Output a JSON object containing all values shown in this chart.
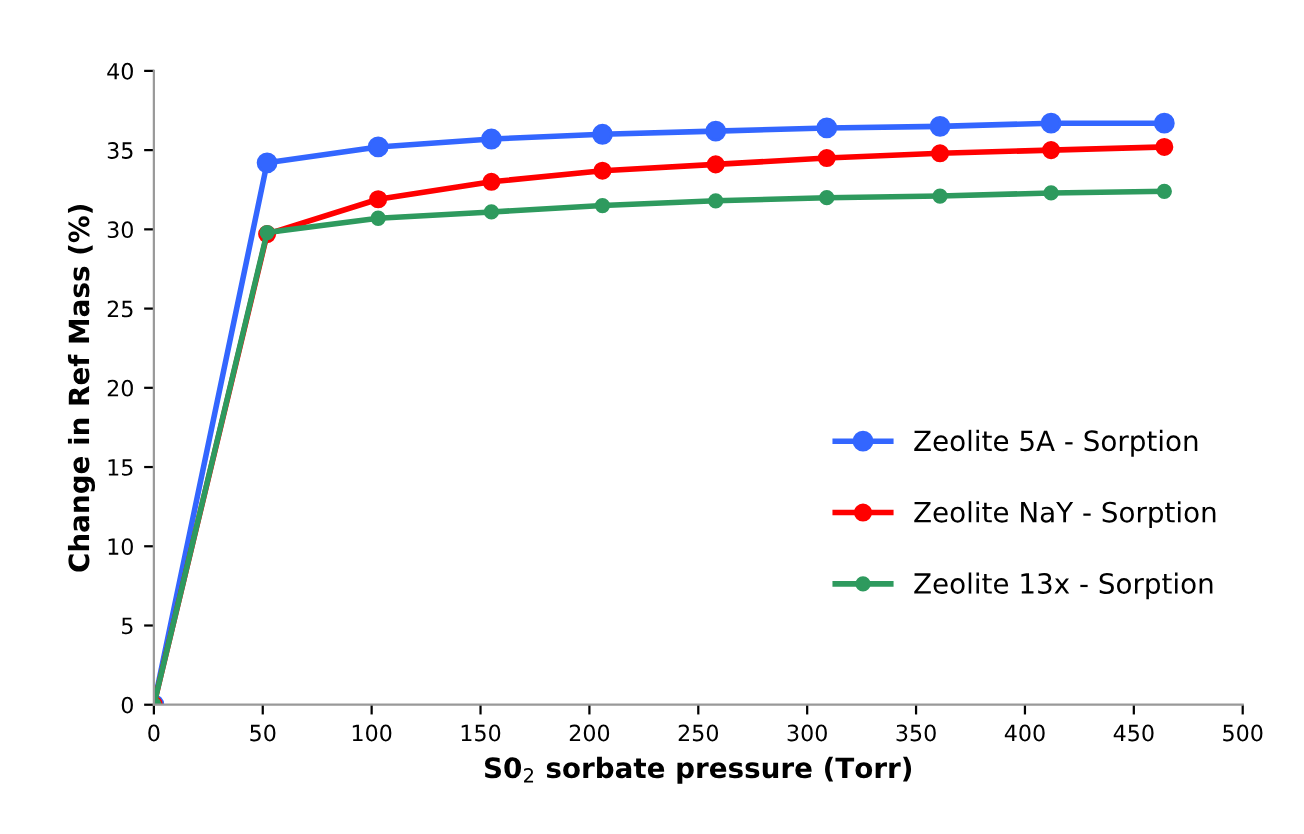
{
  "chart_data": {
    "type": "line",
    "xlabel": "S0$_{2}$ sorbate pressure (Torr)",
    "ylabel": "Change in Ref Mass (%)",
    "x": [
      0,
      52,
      103,
      155,
      206,
      258,
      309,
      361,
      412,
      464
    ],
    "series": [
      {
        "name": "Zeolite 5A - Sorption",
        "color": "#3366ff",
        "values": [
          0,
          34.2,
          35.2,
          35.7,
          36.0,
          36.2,
          36.4,
          36.5,
          36.7,
          36.7
        ]
      },
      {
        "name": "Zeolite NaY - Sorption",
        "color": "#ff0000",
        "values": [
          0,
          29.7,
          31.9,
          33.0,
          33.7,
          34.1,
          34.5,
          34.8,
          35.0,
          35.2
        ]
      },
      {
        "name": "Zeolite 13x - Sorption",
        "color": "#2e9a5e",
        "values": [
          0,
          29.8,
          30.7,
          31.1,
          31.5,
          31.8,
          32.0,
          32.1,
          32.3,
          32.4
        ]
      }
    ],
    "xlim": [
      0,
      500
    ],
    "xticks": [
      0,
      50,
      100,
      150,
      200,
      250,
      300,
      350,
      400,
      450,
      500
    ],
    "ylim": [
      0,
      40
    ],
    "yticks": [
      0,
      5,
      10,
      15,
      20,
      25,
      30,
      35,
      40
    ],
    "grid": false,
    "legend": "right",
    "marker": "circle",
    "line_style": "solid"
  }
}
